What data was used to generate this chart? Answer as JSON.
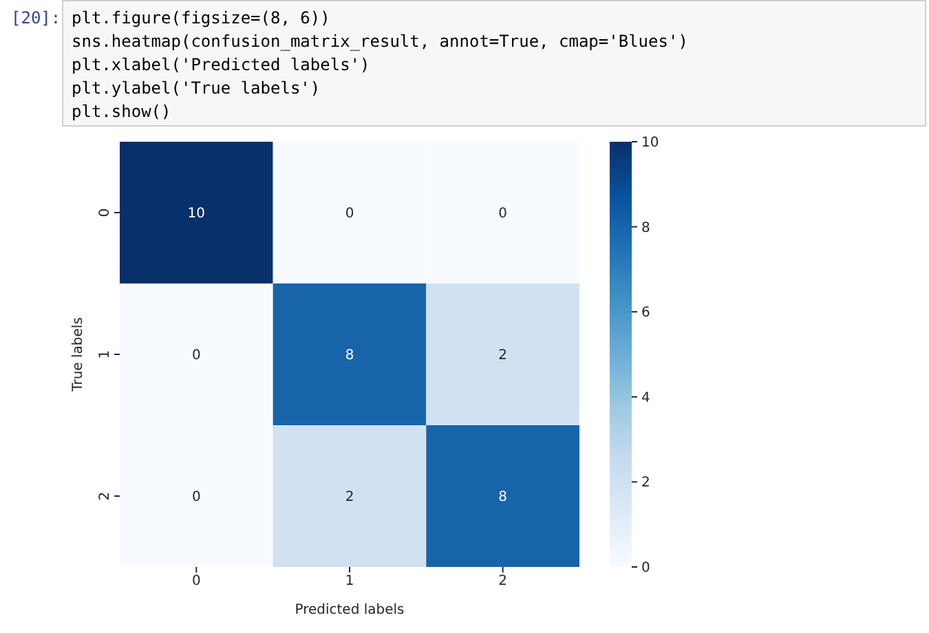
{
  "chart_data": {
    "type": "heatmap",
    "xlabel": "Predicted labels",
    "ylabel": "True labels",
    "categories": [
      "0",
      "1",
      "2"
    ],
    "y_categories": [
      "0",
      "1",
      "2"
    ],
    "cells": [
      [
        10,
        0,
        0
      ],
      [
        0,
        8,
        2
      ],
      [
        0,
        2,
        8
      ]
    ],
    "data_labels": true,
    "clim": [
      0,
      10
    ],
    "cticks": [
      0,
      2,
      4,
      6,
      8,
      10
    ],
    "annotations": [
      "[20]:",
      "plt.figure(figsize=(8, 6))",
      "sns.heatmap(confusion_matrix_result, annot=True, cmap='Blues')",
      "plt.xlabel('Predicted labels')",
      "plt.ylabel('True labels')",
      "plt.show()"
    ]
  }
}
